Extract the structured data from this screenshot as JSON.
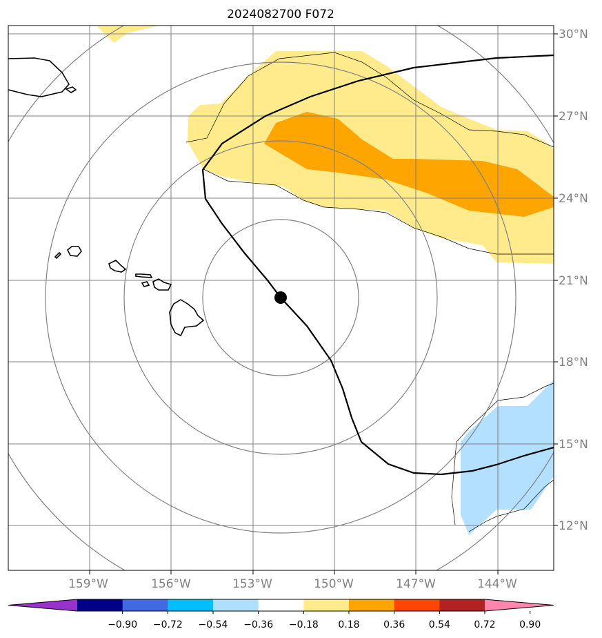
{
  "title": "2024082700 F072",
  "latitude_labels": [
    "30°N",
    "27°N",
    "24°N",
    "21°N",
    "18°N",
    "15°N",
    "12°N"
  ],
  "longitude_labels": [
    "159°W",
    "156°W",
    "153°W",
    "150°W",
    "147°W",
    "144°W"
  ],
  "colorbar": {
    "labels": [
      "−0.90",
      "−0.72",
      "−0.54",
      "−0.36",
      "−0.18",
      "0.18",
      "0.36",
      "0.54",
      "0.72",
      "0.90"
    ],
    "colors": [
      "#9932CC",
      "#00008B",
      "#4169E1",
      "#00BFFF",
      "#ADDFFF",
      "#FFFFFF",
      "#FFEB8C",
      "#FFA500",
      "#FF4500",
      "#B22222",
      "#FF85AD"
    ]
  },
  "colors": {
    "positive_light": "#FFEB8C",
    "positive_medium": "#FFA500",
    "negative_light": "#B3E0FF",
    "grid": "#808080",
    "track": "#000000",
    "coastline": "#000000"
  },
  "storm_center": {
    "lat": 20.7,
    "lon": -152.0
  }
}
